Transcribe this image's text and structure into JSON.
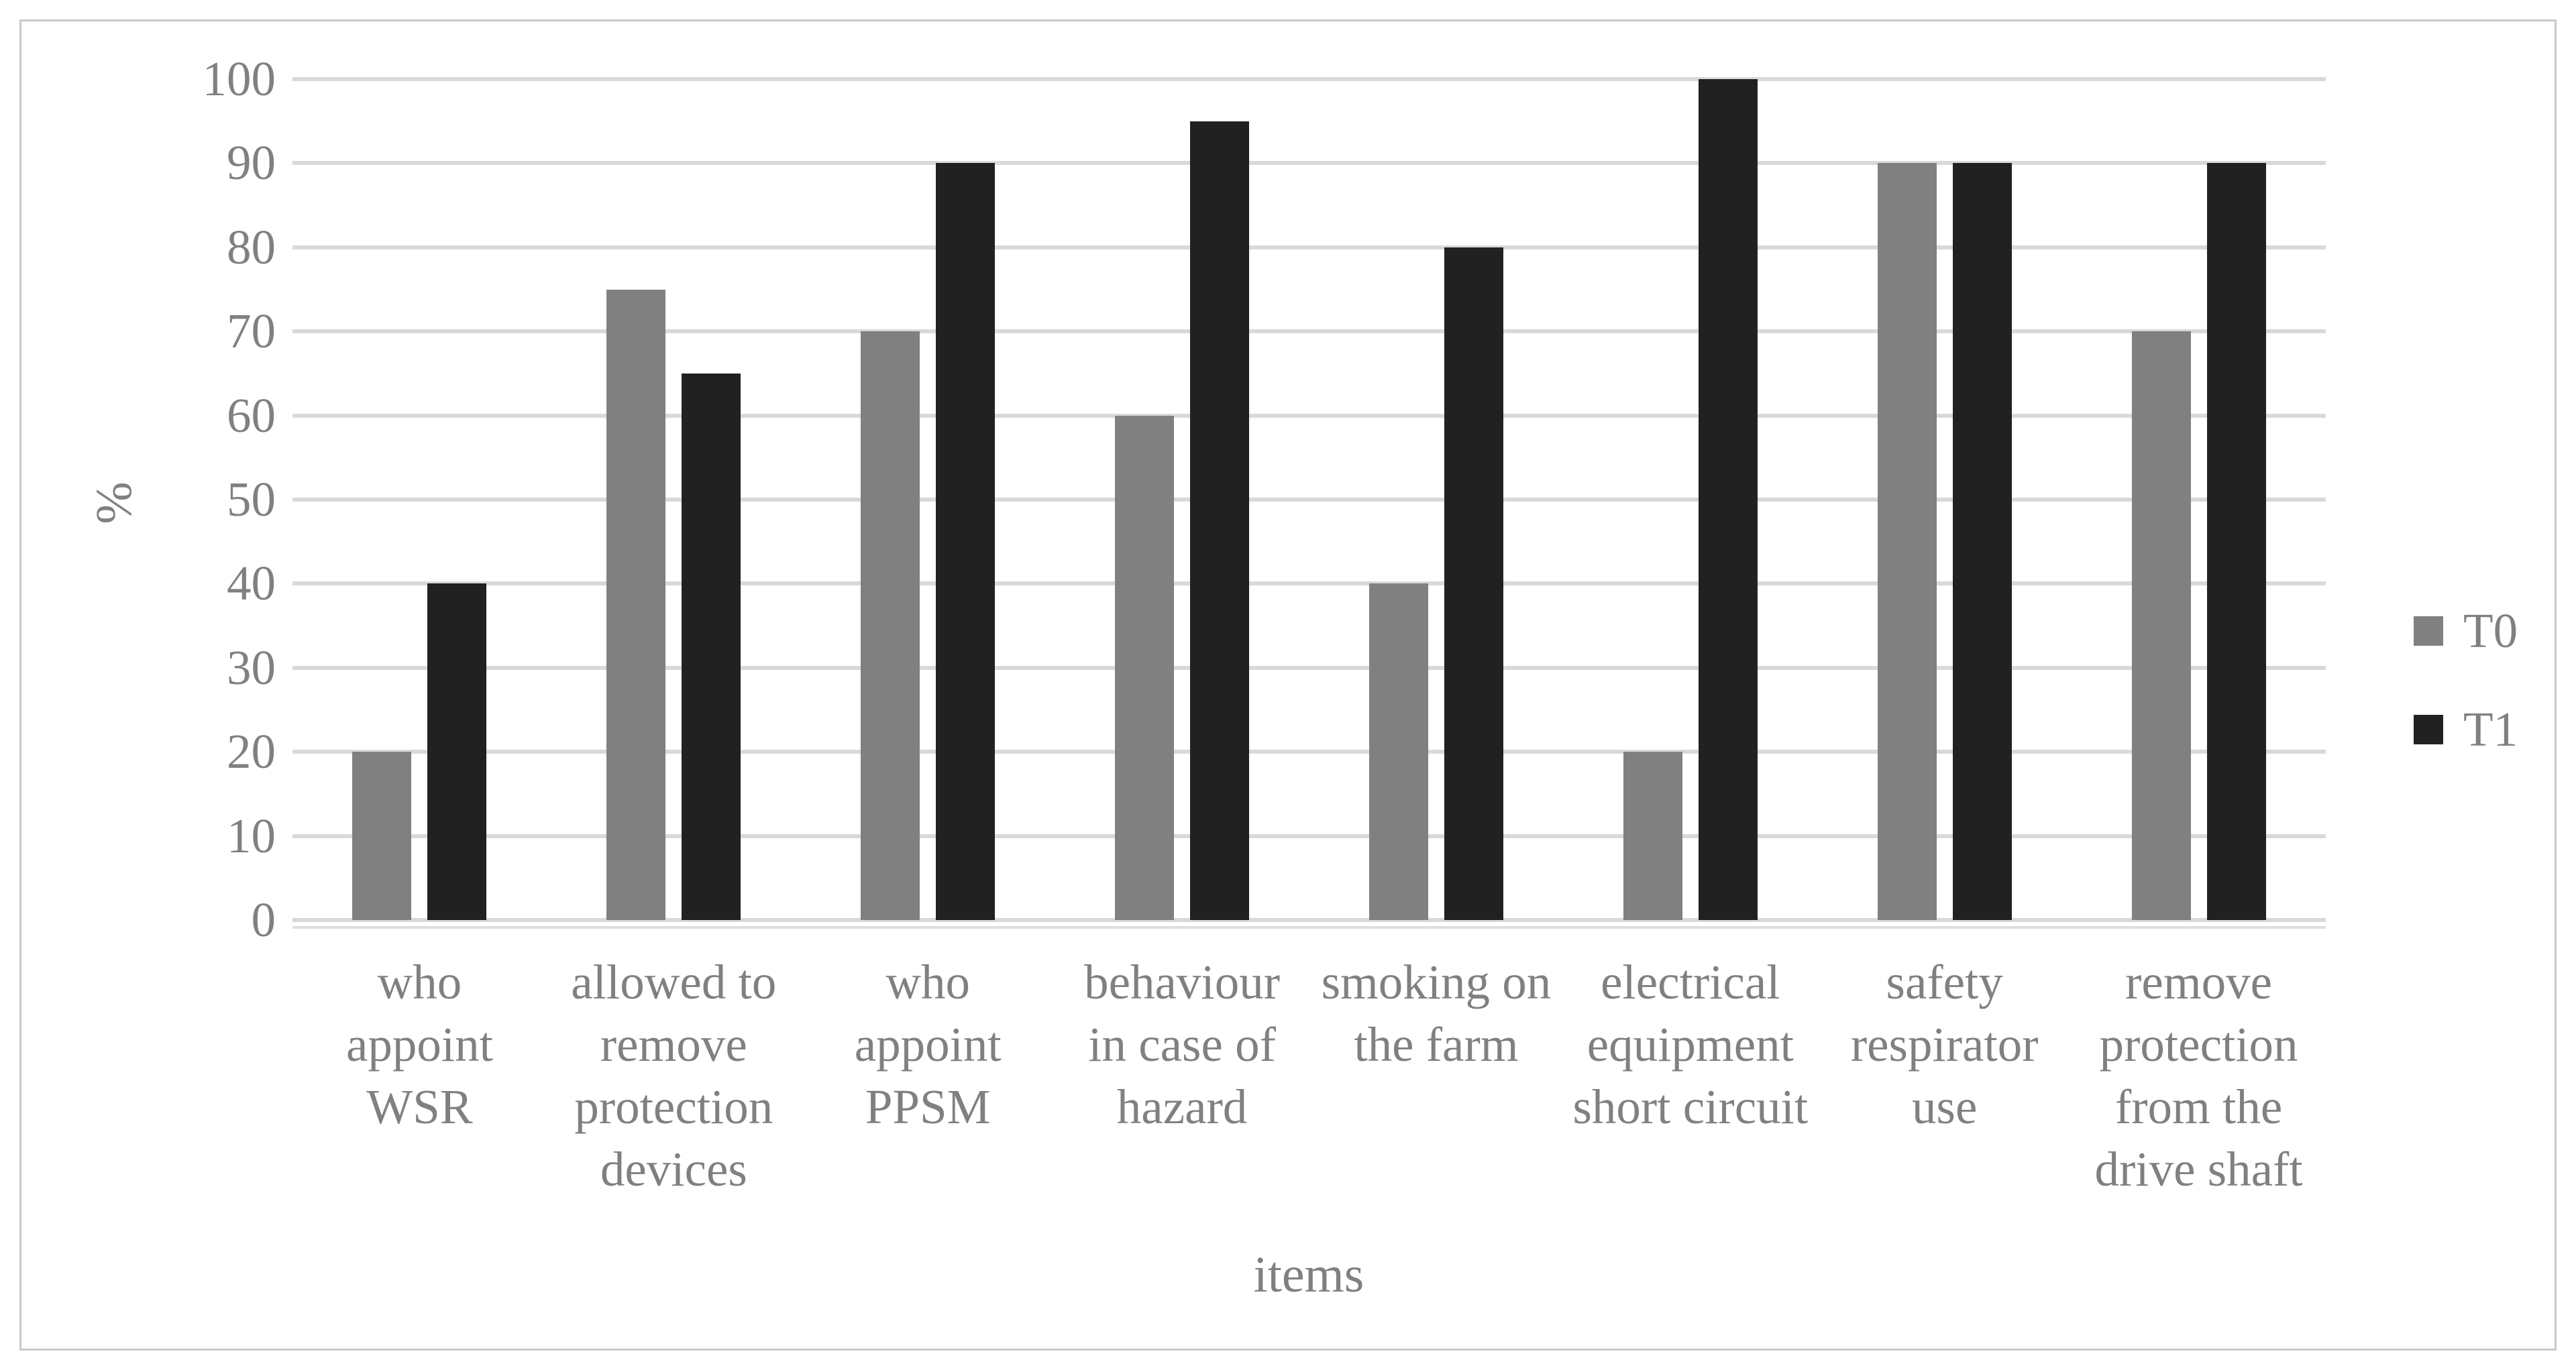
{
  "figure": {
    "y_axis_title": "%",
    "x_axis_title": "items",
    "y_ticks": [
      0,
      10,
      20,
      30,
      40,
      50,
      60,
      70,
      80,
      90,
      100
    ],
    "legend": [
      {
        "label": "T0",
        "color": "#808080"
      },
      {
        "label": "T1",
        "color": "#212121"
      }
    ],
    "colors": {
      "t0_bar": "#808080",
      "t1_bar": "#212121",
      "gridline": "#d9d9d9",
      "axis_text": "#808080",
      "figure_border": "#c9c9c9",
      "background": "#ffffff"
    }
  },
  "chart_data": {
    "type": "bar",
    "title": "",
    "xlabel": "items",
    "ylabel": "%",
    "ylim": [
      0,
      100
    ],
    "ytick_step": 10,
    "grid": true,
    "legend_position": "right",
    "categories": [
      "who appoint WSR",
      "allowed to remove protection devices",
      "who appoint PPSM",
      "behaviour in case of hazard",
      "smoking on the farm",
      "electrical equipment short circuit",
      "safety respirator use",
      "remove protection from the drive shaft"
    ],
    "category_lines": [
      [
        "who",
        "appoint",
        "WSR"
      ],
      [
        "allowed to",
        "remove",
        "protection",
        "devices"
      ],
      [
        "who",
        "appoint",
        "PPSM"
      ],
      [
        "behaviour",
        "in case of",
        "hazard"
      ],
      [
        "smoking on",
        "the farm"
      ],
      [
        "electrical",
        "equipment",
        "short circuit"
      ],
      [
        "safety",
        "respirator",
        "use"
      ],
      [
        "remove",
        "protection",
        "from the",
        "drive shaft"
      ]
    ],
    "series": [
      {
        "name": "T0",
        "color": "#808080",
        "values": [
          20,
          75,
          70,
          60,
          40,
          20,
          90,
          70
        ]
      },
      {
        "name": "T1",
        "color": "#212121",
        "values": [
          40,
          65,
          90,
          95,
          80,
          100,
          90,
          90
        ]
      }
    ]
  }
}
